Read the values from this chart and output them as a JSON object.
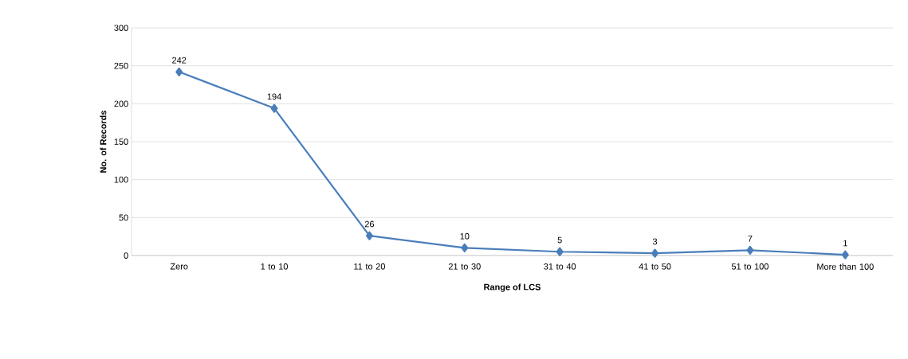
{
  "chart_data": {
    "type": "line",
    "xlabel": "Range of LCS",
    "ylabel": "No. of Records",
    "categories": [
      "Zero",
      "1 to 10",
      "11 to 20",
      "21 to 30",
      "31 to 40",
      "41 to 50",
      "51 to 100",
      "More than 100"
    ],
    "values": [
      242,
      194,
      26,
      10,
      5,
      3,
      7,
      1
    ],
    "color": "#4a7ebb",
    "marker": "diamond",
    "line_style": "solid",
    "ylim": [
      0,
      300
    ],
    "yticks": [
      0,
      50,
      100,
      150,
      200,
      250,
      300
    ],
    "grid": "y",
    "data_labels": true
  }
}
